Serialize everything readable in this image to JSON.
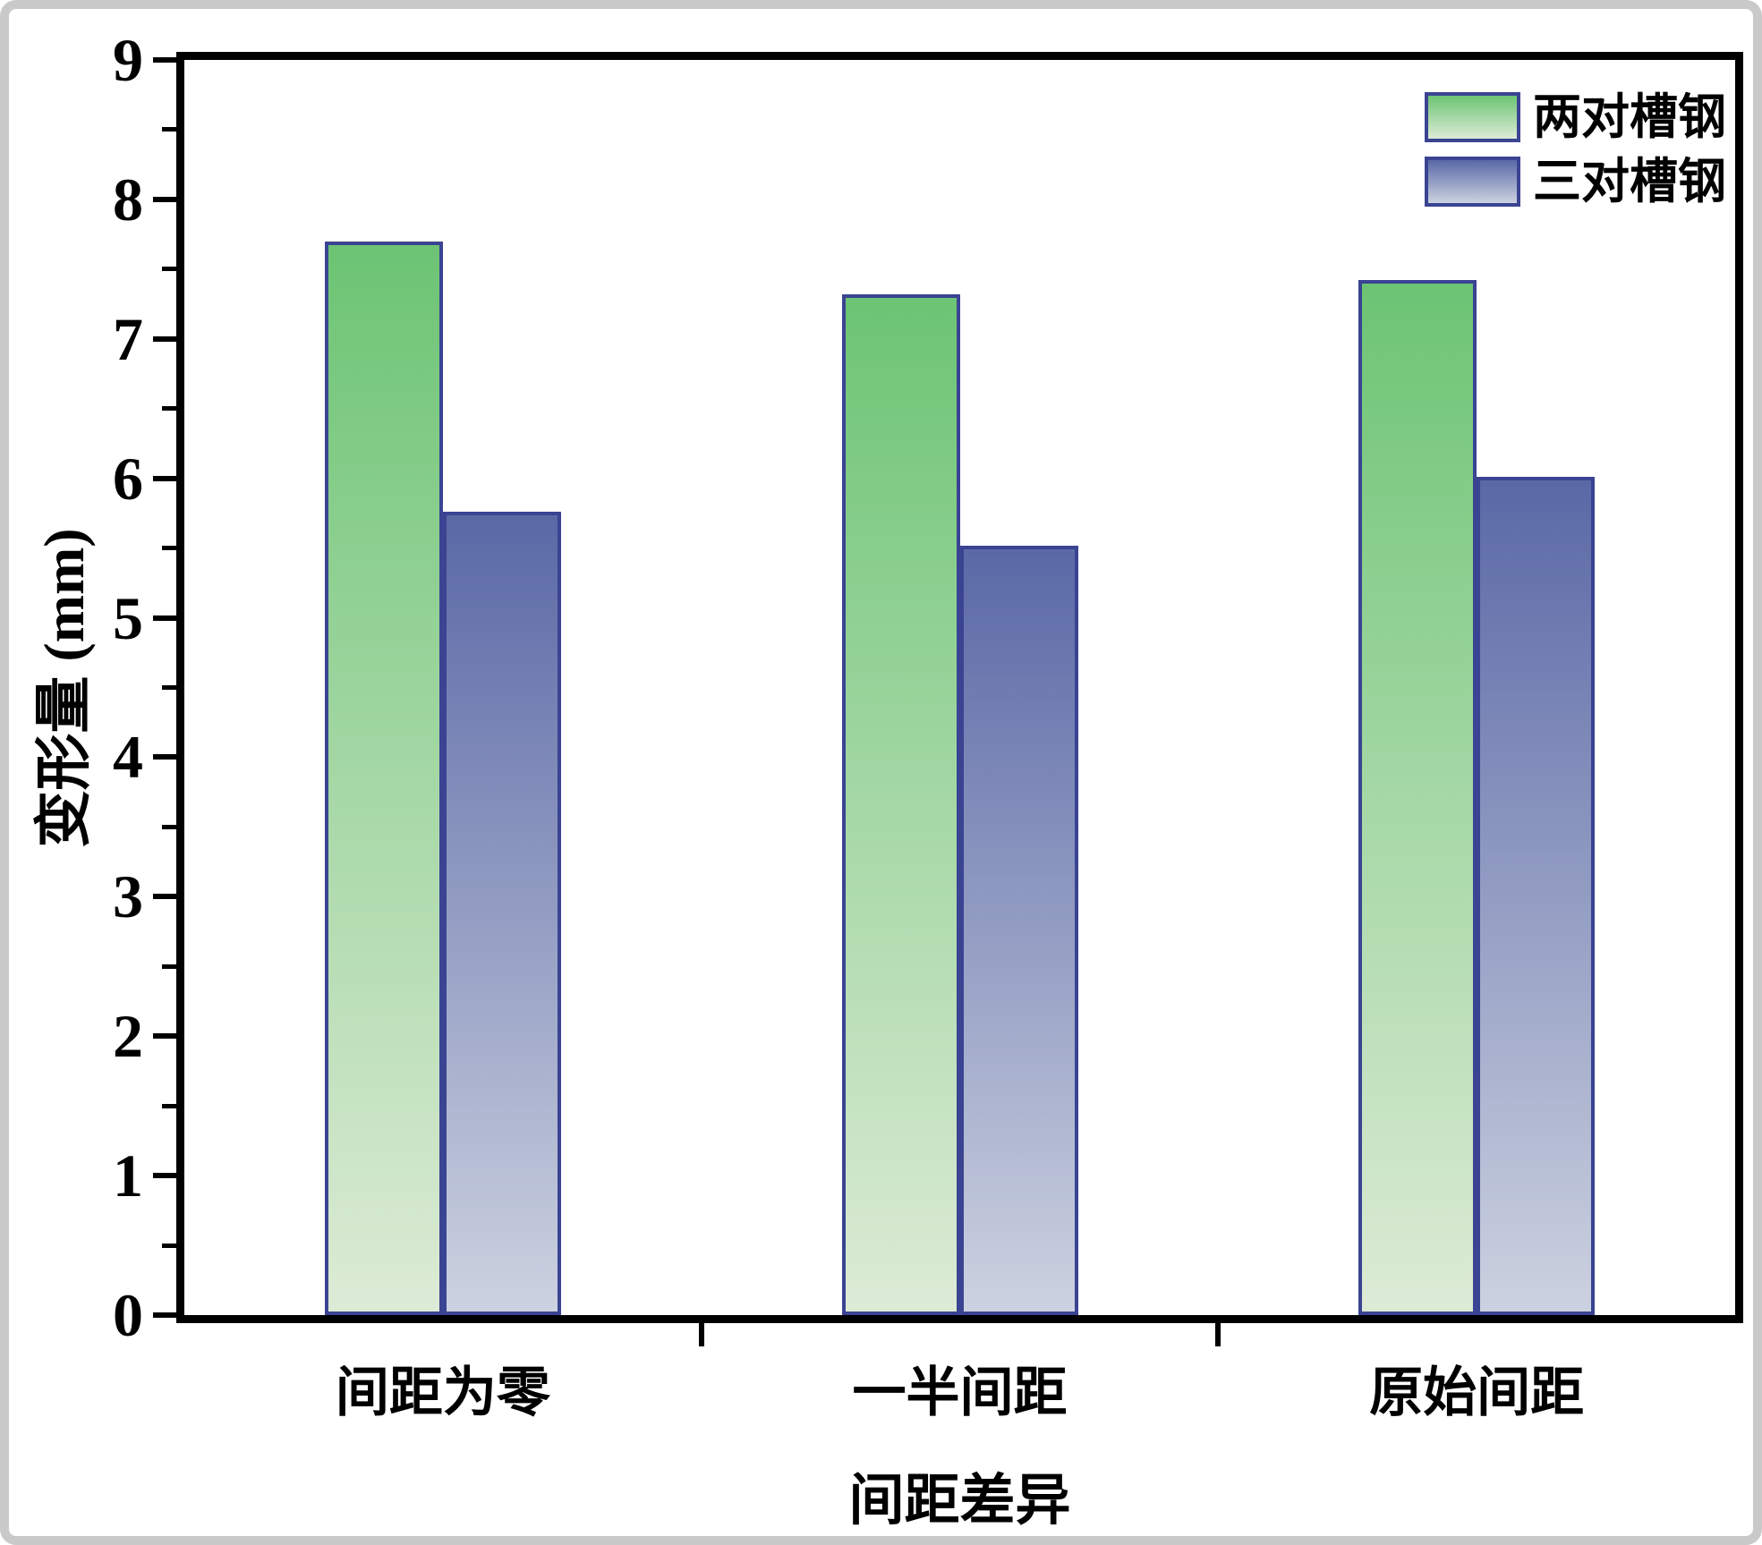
{
  "chart_data": {
    "type": "bar",
    "title": "",
    "xlabel": "间距差异",
    "ylabel": "变形量 (mm)",
    "categories": [
      "间距为零",
      "一半间距",
      "原始间距"
    ],
    "series": [
      {
        "name": "两对槽钢",
        "values": [
          7.7,
          7.32,
          7.42
        ],
        "fill_top": "#6cc474",
        "fill_bottom": "#ddebd6",
        "edge": "#3a4492"
      },
      {
        "name": "三对槽钢",
        "values": [
          5.76,
          5.52,
          6.01
        ],
        "fill_top": "#5a68a6",
        "fill_bottom": "#ccd2e0",
        "edge": "#3a4492"
      }
    ],
    "ylim": [
      0,
      9
    ],
    "y_major_ticks": [
      0,
      1,
      2,
      3,
      4,
      5,
      6,
      7,
      8,
      9
    ],
    "y_minor_step": 0.5,
    "grid": false,
    "legend_position": "top-right",
    "colors": {
      "axis": "#000000",
      "outer_border": "#c9c9c9",
      "background": "#ffffff"
    }
  }
}
